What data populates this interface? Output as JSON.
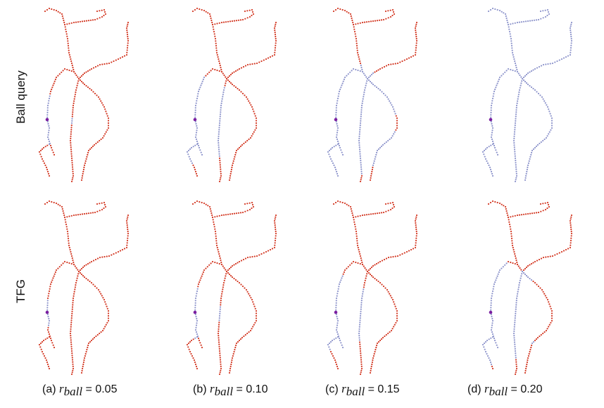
{
  "rows": [
    "Ball query",
    "TFG"
  ],
  "columns": [
    {
      "prefix": "(a)",
      "value": "= 0.05"
    },
    {
      "prefix": "(b)",
      "value": "= 0.10"
    },
    {
      "prefix": "(c)",
      "value": "= 0.15"
    },
    {
      "prefix": "(d)",
      "value": "= 0.20"
    }
  ],
  "symbol": "r",
  "subscript": "ball",
  "colors": {
    "inside": "#8f96cc",
    "outside": "#d33a25",
    "query": "#7a1fa0"
  },
  "highlight_fraction": {
    "ball_query": [
      0.1,
      0.3,
      0.6,
      1.0
    ],
    "tfg": [
      0.05,
      0.12,
      0.25,
      0.4
    ]
  }
}
